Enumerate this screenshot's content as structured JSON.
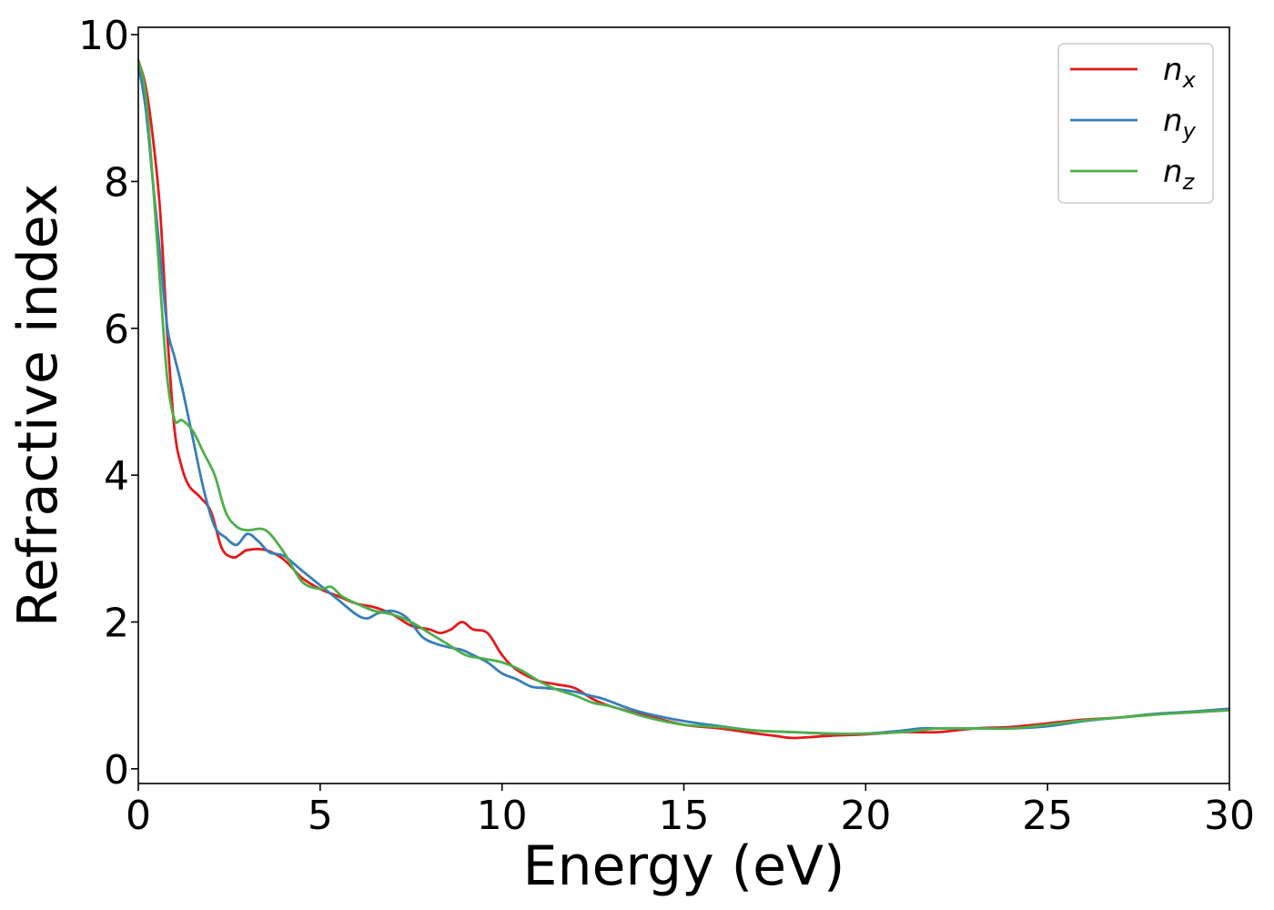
{
  "chart_data": {
    "type": "line",
    "xlabel": "Energy (eV)",
    "ylabel": "Refractive index",
    "xlim": [
      0,
      30
    ],
    "ylim": [
      -0.2,
      10.1
    ],
    "xticks": [
      0,
      5,
      10,
      15,
      20,
      25,
      30
    ],
    "yticks": [
      0,
      2,
      4,
      6,
      8,
      10
    ],
    "grid": false,
    "legend_position": "top-right",
    "series": [
      {
        "name": "n",
        "subscript": "x",
        "color": "#e41a1c",
        "x": [
          0,
          0.2,
          0.4,
          0.6,
          0.8,
          1.0,
          1.2,
          1.4,
          1.7,
          2.0,
          2.3,
          2.6,
          2.8,
          3.0,
          3.5,
          4.0,
          4.5,
          5.0,
          5.5,
          6.0,
          6.5,
          7.0,
          7.5,
          8.0,
          8.3,
          8.6,
          8.9,
          9.2,
          9.6,
          10.0,
          10.4,
          11.0,
          11.5,
          12.0,
          12.5,
          13.0,
          14.0,
          15.0,
          16.0,
          17.0,
          17.5,
          18.0,
          19.0,
          20.0,
          21.0,
          22.0,
          23.0,
          24.0,
          25.0,
          26.0,
          27.0,
          28.0,
          29.0,
          30.0
        ],
        "y": [
          9.65,
          9.3,
          8.6,
          7.6,
          5.9,
          4.6,
          4.1,
          3.85,
          3.7,
          3.5,
          3.0,
          2.88,
          2.92,
          2.98,
          2.98,
          2.85,
          2.6,
          2.45,
          2.35,
          2.25,
          2.2,
          2.1,
          1.95,
          1.9,
          1.85,
          1.9,
          2.0,
          1.9,
          1.85,
          1.55,
          1.35,
          1.2,
          1.15,
          1.1,
          0.95,
          0.85,
          0.72,
          0.6,
          0.55,
          0.48,
          0.45,
          0.42,
          0.45,
          0.47,
          0.5,
          0.5,
          0.55,
          0.57,
          0.62,
          0.67,
          0.7,
          0.75,
          0.77,
          0.8
        ]
      },
      {
        "name": "n",
        "subscript": "y",
        "color": "#377eb8",
        "x": [
          0,
          0.2,
          0.4,
          0.6,
          0.8,
          1.0,
          1.2,
          1.5,
          1.8,
          2.1,
          2.4,
          2.7,
          3.0,
          3.3,
          3.6,
          4.0,
          4.5,
          5.0,
          5.5,
          6.0,
          6.3,
          6.6,
          7.0,
          7.4,
          7.8,
          8.2,
          8.6,
          8.9,
          9.2,
          9.6,
          10.0,
          10.4,
          10.8,
          11.2,
          11.6,
          12.0,
          12.4,
          12.8,
          13.5,
          14.0,
          15.0,
          16.0,
          17.0,
          18.0,
          19.0,
          20.0,
          21.0,
          21.5,
          22.0,
          23.0,
          24.0,
          25.0,
          26.0,
          27.0,
          28.0,
          29.0,
          30.0
        ],
        "y": [
          9.6,
          9.0,
          8.0,
          7.0,
          6.0,
          5.6,
          5.2,
          4.5,
          3.8,
          3.3,
          3.15,
          3.05,
          3.2,
          3.1,
          2.95,
          2.9,
          2.7,
          2.5,
          2.3,
          2.1,
          2.05,
          2.12,
          2.15,
          2.05,
          1.8,
          1.7,
          1.65,
          1.62,
          1.55,
          1.45,
          1.3,
          1.22,
          1.12,
          1.1,
          1.08,
          1.05,
          1.0,
          0.95,
          0.82,
          0.75,
          0.65,
          0.58,
          0.52,
          0.5,
          0.48,
          0.48,
          0.52,
          0.55,
          0.55,
          0.55,
          0.55,
          0.58,
          0.65,
          0.7,
          0.75,
          0.78,
          0.82
        ]
      },
      {
        "name": "n",
        "subscript": "z",
        "color": "#4daf4a",
        "x": [
          0,
          0.2,
          0.4,
          0.6,
          0.8,
          1.0,
          1.2,
          1.5,
          1.8,
          2.1,
          2.4,
          2.7,
          3.0,
          3.5,
          4.0,
          4.5,
          5.0,
          5.3,
          5.6,
          6.0,
          6.5,
          7.0,
          7.5,
          8.0,
          8.5,
          9.0,
          9.5,
          10.0,
          10.5,
          11.0,
          11.5,
          12.0,
          12.5,
          13.0,
          14.0,
          15.0,
          16.0,
          17.0,
          18.0,
          19.0,
          20.0,
          21.0,
          22.0,
          23.0,
          24.0,
          25.0,
          26.0,
          27.0,
          28.0,
          29.0,
          30.0
        ],
        "y": [
          9.65,
          9.2,
          8.0,
          6.6,
          5.3,
          4.75,
          4.75,
          4.6,
          4.3,
          4.0,
          3.5,
          3.3,
          3.25,
          3.25,
          2.95,
          2.55,
          2.45,
          2.48,
          2.35,
          2.25,
          2.15,
          2.1,
          2.0,
          1.85,
          1.7,
          1.55,
          1.5,
          1.45,
          1.35,
          1.2,
          1.08,
          1.0,
          0.9,
          0.85,
          0.7,
          0.6,
          0.57,
          0.52,
          0.5,
          0.48,
          0.48,
          0.5,
          0.55,
          0.55,
          0.55,
          0.6,
          0.66,
          0.7,
          0.74,
          0.77,
          0.8
        ]
      }
    ]
  }
}
